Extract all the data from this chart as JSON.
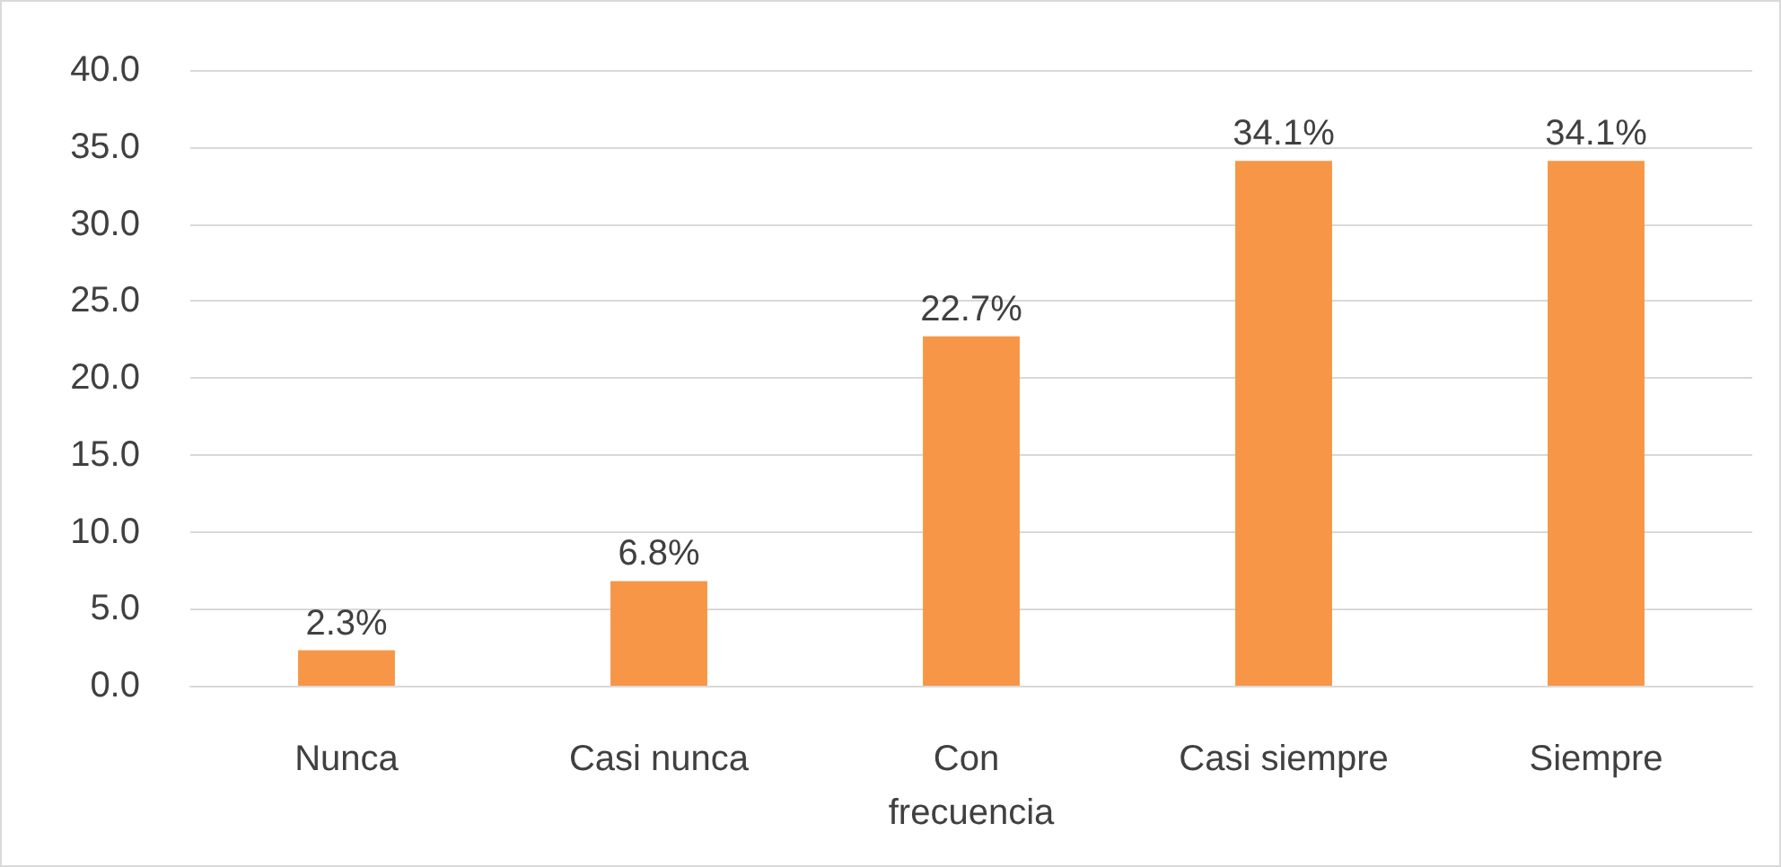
{
  "chart_data": {
    "type": "bar",
    "categories": [
      "Nunca",
      "Casi nunca",
      "Con frecuencia",
      "Casi siempre",
      "Siempre"
    ],
    "values": [
      2.3,
      6.8,
      22.7,
      34.1,
      34.1
    ],
    "value_labels": [
      "2.3%",
      "6.8%",
      "22.7%",
      "34.1%",
      "34.1%"
    ],
    "color": "#f79646",
    "ylim": [
      0,
      40
    ],
    "yticks": [
      {
        "value": 0,
        "label": "0.0"
      },
      {
        "value": 5,
        "label": "5.0"
      },
      {
        "value": 10,
        "label": "10.0"
      },
      {
        "value": 15,
        "label": "15.0"
      },
      {
        "value": 20,
        "label": "20.0"
      },
      {
        "value": 25,
        "label": "25.0"
      },
      {
        "value": 30,
        "label": "30.0"
      },
      {
        "value": 35,
        "label": "35.0"
      },
      {
        "value": 40,
        "label": "40.0"
      }
    ],
    "grid": true
  }
}
